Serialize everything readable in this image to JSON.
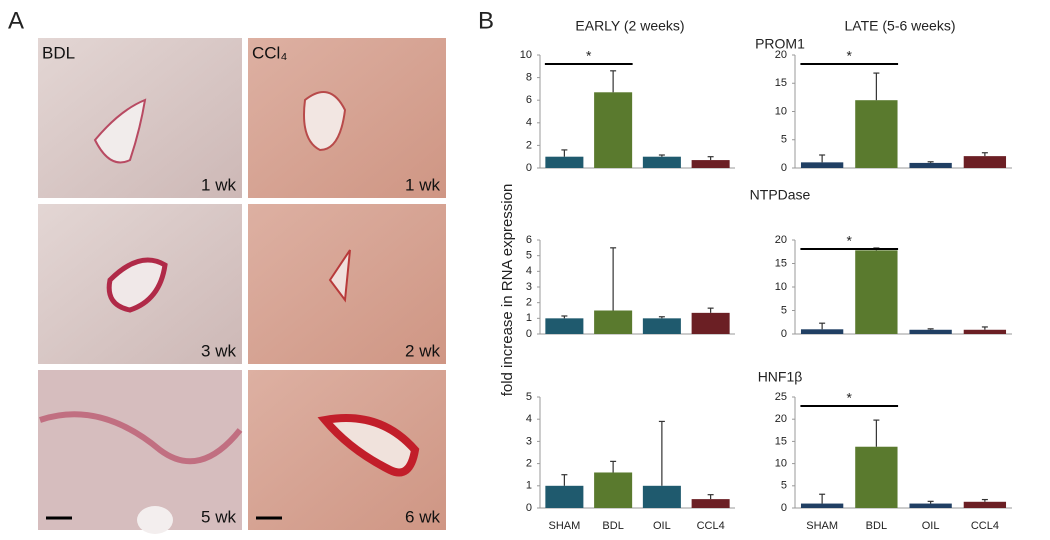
{
  "panel_a": {
    "label": "A",
    "columns": [
      "BDL",
      "CCl₄"
    ],
    "time_labels": [
      [
        "1 wk",
        "3 wk",
        "5 wk"
      ],
      [
        "1 wk",
        "2 wk",
        "6 wk"
      ]
    ]
  },
  "panel_b": {
    "label": "B",
    "column_titles": [
      "EARLY (2 weeks)",
      "LATE (5-6 weeks)"
    ],
    "row_titles": [
      "PROM1",
      "NTPDase",
      "HNF1β"
    ],
    "y_label": "fold increase in RNA expression"
  },
  "chart_data": [
    {
      "type": "bar",
      "categories": [
        null,
        null,
        null,
        null
      ],
      "values": [
        1,
        6.7,
        1,
        0.7
      ],
      "errors": [
        0.6,
        1.9,
        0.15,
        0.3
      ],
      "colors": [
        "#1f5a6e",
        "#5a7a2e",
        "#1f5a6e",
        "#6b1f24"
      ],
      "ylim": [
        0,
        10
      ],
      "yticks": [
        0,
        2,
        4,
        6,
        8,
        10
      ],
      "annotation": "*"
    },
    {
      "type": "bar",
      "categories": [
        null,
        null,
        null,
        null
      ],
      "values": [
        1,
        12,
        0.9,
        2.1
      ],
      "errors": [
        1.3,
        4.8,
        0.2,
        0.6
      ],
      "colors": [
        "#203f63",
        "#5a7a2e",
        "#203f63",
        "#6b1f24"
      ],
      "ylim": [
        0,
        20
      ],
      "yticks": [
        0,
        5,
        10,
        15,
        20
      ],
      "annotation": "*"
    },
    {
      "type": "bar",
      "categories": [
        null,
        null,
        null,
        null
      ],
      "values": [
        1,
        1.5,
        1,
        1.35
      ],
      "errors": [
        0.15,
        4,
        0.1,
        0.3
      ],
      "colors": [
        "#1f5a6e",
        "#5a7a2e",
        "#1f5a6e",
        "#6b1f24"
      ],
      "ylim": [
        0,
        6
      ],
      "yticks": [
        0,
        1,
        2,
        3,
        4,
        5,
        6
      ]
    },
    {
      "type": "bar",
      "categories": [
        null,
        null,
        null,
        null
      ],
      "values": [
        1,
        17.8,
        0.9,
        0.9
      ],
      "errors": [
        1.3,
        0.5,
        0.2,
        0.6
      ],
      "colors": [
        "#203f63",
        "#5a7a2e",
        "#203f63",
        "#6b1f24"
      ],
      "ylim": [
        0,
        20
      ],
      "yticks": [
        0,
        5,
        10,
        15,
        20
      ],
      "annotation": "*"
    },
    {
      "type": "bar",
      "categories": [
        "SHAM",
        "BDL",
        "OIL",
        "CCL4"
      ],
      "values": [
        1,
        1.6,
        1,
        0.4
      ],
      "errors": [
        0.5,
        0.5,
        2.9,
        0.2
      ],
      "colors": [
        "#1f5a6e",
        "#5a7a2e",
        "#1f5a6e",
        "#6b1f24"
      ],
      "ylim": [
        0,
        5
      ],
      "yticks": [
        0,
        1,
        2,
        3,
        4,
        5
      ]
    },
    {
      "type": "bar",
      "categories": [
        "SHAM",
        "BDL",
        "OIL",
        "CCL4"
      ],
      "values": [
        1,
        13.8,
        1,
        1.4
      ],
      "errors": [
        2.1,
        6,
        0.5,
        0.5
      ],
      "colors": [
        "#203f63",
        "#5a7a2e",
        "#203f63",
        "#6b1f24"
      ],
      "ylim": [
        0,
        25
      ],
      "yticks": [
        0,
        5,
        10,
        15,
        20,
        25
      ],
      "annotation": "*"
    }
  ]
}
